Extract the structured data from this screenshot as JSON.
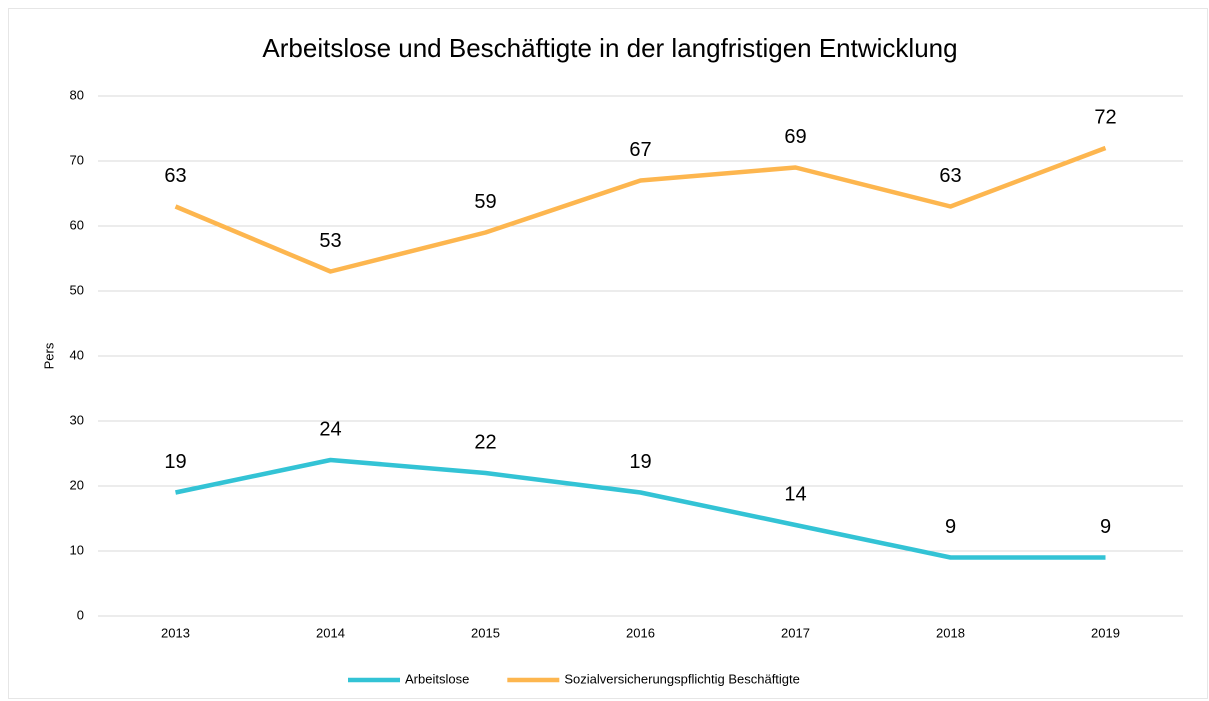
{
  "chart_data": {
    "type": "line",
    "title": "Arbeitslose und Beschäftigte in der langfristigen Entwicklung",
    "y_label": "Pers",
    "categories": [
      "2013",
      "2014",
      "2015",
      "2016",
      "2017",
      "2018",
      "2019"
    ],
    "series": [
      {
        "name": "Arbeitslose",
        "color": "#33c3d5",
        "values": [
          19,
          24,
          22,
          19,
          14,
          9,
          9
        ]
      },
      {
        "name": "Sozialversicherungspflichtig Beschäftigte",
        "color": "#fdb64f",
        "values": [
          63,
          53,
          59,
          67,
          69,
          63,
          72
        ]
      }
    ],
    "ylim": [
      0,
      80
    ],
    "yticks": [
      0,
      10,
      20,
      30,
      40,
      50,
      60,
      70,
      80
    ],
    "grid": true,
    "legend": "bottom"
  }
}
